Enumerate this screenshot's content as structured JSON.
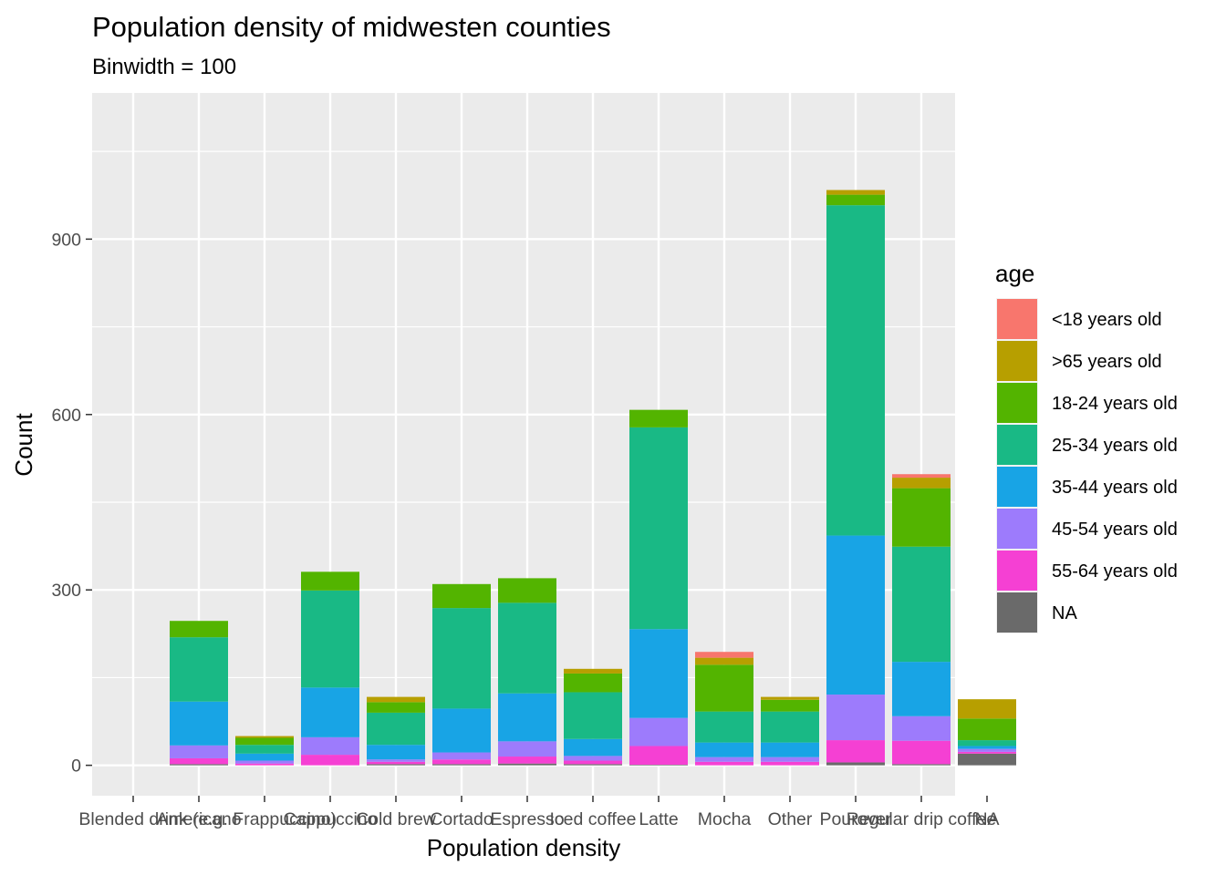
{
  "chart_data": {
    "type": "bar",
    "stacked": true,
    "title": "Population density of midwesten counties",
    "subtitle": "Binwidth = 100",
    "xlabel": "Population density",
    "ylabel": "Count",
    "ylim": [
      -52,
      1150
    ],
    "yticks": [
      0,
      300,
      600,
      900
    ],
    "grid": true,
    "legend": {
      "title": "age",
      "position": "right"
    },
    "categories": [
      "Blended drink",
      "Americano",
      "(e.g. Frappuccino)",
      "Cappuccino",
      "Cold brew",
      "Cortado",
      "Espresso",
      "Iced coffee",
      "Latte",
      "Mocha",
      "Other",
      "Pourover",
      "Regular drip coffee",
      "NA"
    ],
    "series": [
      {
        "name": "<18 years old",
        "color": "#F8766D",
        "values": [
          0,
          0,
          0,
          0,
          0,
          0,
          0,
          0,
          0,
          10,
          0,
          0,
          6,
          0
        ]
      },
      {
        "name": ">65 years old",
        "color": "#B79F00",
        "values": [
          0,
          0,
          3,
          0,
          9,
          0,
          0,
          8,
          0,
          12,
          5,
          8,
          18,
          33
        ]
      },
      {
        "name": "18-24 years old",
        "color": "#53B400",
        "values": [
          0,
          28,
          12,
          32,
          18,
          41,
          42,
          32,
          30,
          80,
          20,
          18,
          100,
          37
        ]
      },
      {
        "name": "25-34 years old",
        "color": "#19B985",
        "values": [
          0,
          110,
          15,
          166,
          55,
          172,
          155,
          80,
          345,
          53,
          53,
          565,
          197,
          10
        ]
      },
      {
        "name": "35-44 years old",
        "color": "#18A4E5",
        "values": [
          0,
          75,
          12,
          85,
          25,
          75,
          82,
          29,
          152,
          25,
          25,
          272,
          93,
          5
        ]
      },
      {
        "name": "45-54 years old",
        "color": "#9D7BFC",
        "values": [
          0,
          22,
          5,
          30,
          4,
          12,
          26,
          8,
          48,
          8,
          8,
          78,
          42,
          5
        ]
      },
      {
        "name": "55-64 years old",
        "color": "#F540D3",
        "values": [
          0,
          10,
          3,
          18,
          4,
          8,
          12,
          6,
          32,
          6,
          6,
          38,
          40,
          3
        ]
      },
      {
        "name": "NA",
        "color": "#6A6A6A",
        "values": [
          0,
          2,
          0,
          0,
          2,
          2,
          3,
          2,
          1,
          0,
          0,
          5,
          2,
          20
        ]
      }
    ]
  }
}
